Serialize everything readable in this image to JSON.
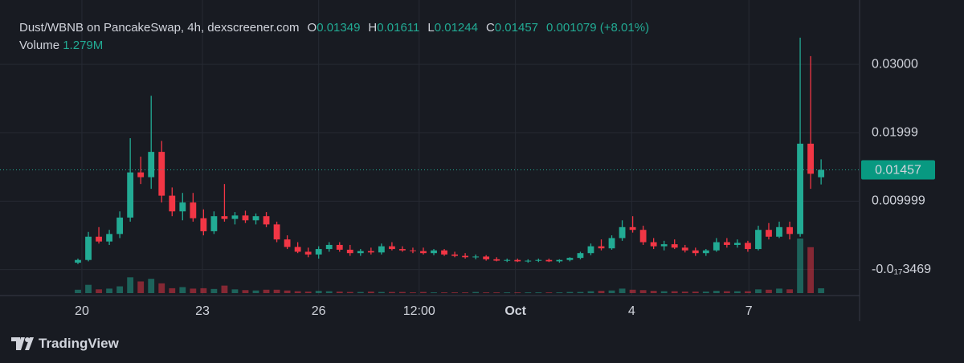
{
  "chart_data": {
    "type": "candlestick",
    "title": "Dust/WBNB on PancakeSwap, 4h, dexscreener.com",
    "ohlc_legend": [
      {
        "key": "O",
        "value": 0.01349
      },
      {
        "key": "H",
        "value": 0.01611
      },
      {
        "key": "L",
        "value": 0.01244
      },
      {
        "key": "C",
        "value": 0.01457
      }
    ],
    "change": 0.001079,
    "change_label": "(+8.01%)",
    "volume_title": "Volume",
    "volume_label": "1.279M",
    "branding": "TradingView",
    "up_color": "#22ab94",
    "down_color": "#f23645",
    "ylim": [
      -0.0038,
      0.0394
    ],
    "yticks": [
      {
        "value": 0.03,
        "label": "0.03000"
      },
      0.01999,
      0.009999,
      {
        "value": 0,
        "label": "-0.0₁₇3469"
      }
    ],
    "xticks": [
      {
        "value": 0.38,
        "label": "20"
      },
      {
        "value": 11.9,
        "label": "23"
      },
      {
        "value": 23.0,
        "label": "26"
      },
      {
        "value": 32.6,
        "label": "12:00"
      },
      {
        "value": 41.8,
        "label": "Oct"
      },
      {
        "value": 52.9,
        "label": "4"
      },
      {
        "value": 64.1,
        "label": "7"
      }
    ],
    "grid": true,
    "open": [
      0.001,
      0.0014,
      0.0048,
      0.0041,
      0.0052,
      0.0076,
      0.0142,
      0.0135,
      0.0172,
      0.0108,
      0.0085,
      0.0098,
      0.0075,
      0.0056,
      0.0078,
      0.0074,
      0.0079,
      0.0072,
      0.0078,
      0.0066,
      0.0044,
      0.0033,
      0.0026,
      0.0022,
      0.003,
      0.0036,
      0.0029,
      0.0024,
      0.0027,
      0.0025,
      0.0034,
      0.003,
      0.0028,
      0.0027,
      0.0024,
      0.0028,
      0.0022,
      0.002,
      0.0018,
      0.0019,
      0.0015,
      0.0013,
      0.0014,
      0.0012,
      0.0013,
      0.0014,
      0.0012,
      0.0014,
      0.0017,
      0.0024,
      0.0034,
      0.0031,
      0.0046,
      0.0062,
      0.0058,
      0.004,
      0.0034,
      0.0037,
      0.0032,
      0.0028,
      0.0024,
      0.0028,
      0.004,
      0.0036,
      0.0039,
      0.003,
      0.0058,
      0.0048,
      0.0062,
      0.0052,
      0.0184,
      0.01349
    ],
    "high": [
      0.0016,
      0.0055,
      0.0062,
      0.0058,
      0.0085,
      0.0192,
      0.0165,
      0.0254,
      0.0188,
      0.012,
      0.0112,
      0.0112,
      0.0088,
      0.0085,
      0.0125,
      0.0084,
      0.0086,
      0.0082,
      0.0084,
      0.007,
      0.005,
      0.004,
      0.0032,
      0.0034,
      0.004,
      0.004,
      0.0036,
      0.003,
      0.0032,
      0.0038,
      0.004,
      0.0034,
      0.0032,
      0.0032,
      0.003,
      0.003,
      0.0026,
      0.0024,
      0.0022,
      0.0021,
      0.0018,
      0.0016,
      0.0016,
      0.0015,
      0.0016,
      0.0016,
      0.0015,
      0.0018,
      0.0026,
      0.0038,
      0.0044,
      0.005,
      0.0072,
      0.0078,
      0.0064,
      0.0046,
      0.0042,
      0.0044,
      0.0036,
      0.0032,
      0.003,
      0.0046,
      0.0046,
      0.0044,
      0.0042,
      0.0064,
      0.0068,
      0.007,
      0.007,
      0.0339,
      0.0312,
      0.01611
    ],
    "low": [
      0.0008,
      0.0012,
      0.0038,
      0.0036,
      0.0046,
      0.007,
      0.0125,
      0.0118,
      0.0098,
      0.0078,
      0.0072,
      0.007,
      0.005,
      0.0052,
      0.007,
      0.0066,
      0.0068,
      0.0066,
      0.0062,
      0.004,
      0.003,
      0.0024,
      0.0018,
      0.0016,
      0.0026,
      0.0026,
      0.002,
      0.002,
      0.0022,
      0.0022,
      0.0028,
      0.0026,
      0.0024,
      0.0022,
      0.0021,
      0.002,
      0.0018,
      0.0016,
      0.0015,
      0.0013,
      0.0012,
      0.0011,
      0.0011,
      0.001,
      0.0011,
      0.0011,
      0.001,
      0.0012,
      0.0015,
      0.0021,
      0.0028,
      0.0029,
      0.0042,
      0.0054,
      0.0036,
      0.003,
      0.0028,
      0.003,
      0.0025,
      0.002,
      0.002,
      0.0026,
      0.0032,
      0.0032,
      0.0026,
      0.0028,
      0.0044,
      0.0046,
      0.0044,
      0.0048,
      0.0118,
      0.01244
    ],
    "close": [
      0.0014,
      0.0048,
      0.0041,
      0.0052,
      0.0076,
      0.0142,
      0.0135,
      0.0172,
      0.0108,
      0.0085,
      0.0098,
      0.0075,
      0.0056,
      0.0078,
      0.0074,
      0.0079,
      0.0072,
      0.0078,
      0.0066,
      0.0044,
      0.0033,
      0.0026,
      0.0022,
      0.003,
      0.0036,
      0.0029,
      0.0024,
      0.0027,
      0.0025,
      0.0034,
      0.003,
      0.0028,
      0.0027,
      0.0024,
      0.0028,
      0.0022,
      0.002,
      0.0018,
      0.0019,
      0.0015,
      0.0013,
      0.0014,
      0.0012,
      0.0013,
      0.0014,
      0.0012,
      0.0014,
      0.0017,
      0.0024,
      0.0034,
      0.0031,
      0.0046,
      0.0062,
      0.0058,
      0.004,
      0.0034,
      0.0037,
      0.0032,
      0.0028,
      0.0024,
      0.0028,
      0.004,
      0.0036,
      0.0039,
      0.003,
      0.0058,
      0.0048,
      0.0062,
      0.0052,
      0.0184,
      0.014,
      0.01457
    ],
    "volume": [
      0.9,
      2.2,
      1.0,
      1.2,
      1.8,
      4.2,
      3.1,
      3.8,
      2.6,
      1.3,
      1.6,
      1.2,
      1.3,
      1.1,
      2.0,
      1.0,
      0.8,
      0.7,
      0.9,
      0.9,
      0.7,
      0.5,
      0.4,
      0.6,
      0.5,
      0.4,
      0.3,
      0.3,
      0.4,
      0.3,
      0.3,
      0.3,
      0.2,
      0.3,
      0.2,
      0.2,
      0.2,
      0.2,
      0.3,
      0.2,
      0.2,
      0.2,
      0.2,
      0.2,
      0.2,
      0.2,
      0.2,
      0.3,
      0.3,
      0.5,
      0.6,
      0.7,
      1.2,
      0.9,
      0.8,
      0.6,
      0.5,
      0.5,
      0.4,
      0.4,
      0.4,
      0.6,
      0.5,
      0.5,
      0.5,
      1.0,
      0.9,
      1.2,
      1.0,
      14.5,
      12.2,
      1.279
    ]
  }
}
